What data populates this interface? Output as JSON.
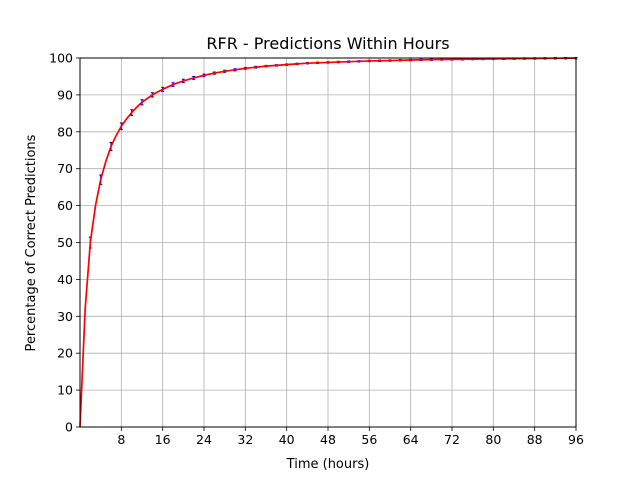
{
  "chart_data": {
    "type": "line",
    "title": "RFR - Predictions Within Hours",
    "xlabel": "Time (hours)",
    "ylabel": "Percentage of Correct Predictions",
    "xlim": [
      0,
      96
    ],
    "ylim": [
      0,
      100
    ],
    "xticks": [
      8,
      16,
      24,
      32,
      40,
      48,
      56,
      64,
      72,
      80,
      88,
      96
    ],
    "yticks": [
      0,
      10,
      20,
      30,
      40,
      50,
      60,
      70,
      80,
      90,
      100
    ],
    "grid": true,
    "series": [
      {
        "color": "#ff0000",
        "x": [
          0,
          0.5,
          1,
          1.5,
          2,
          3,
          4,
          5,
          6,
          7,
          8,
          9,
          10,
          11,
          12,
          13,
          14,
          15,
          16,
          18,
          20,
          22,
          24,
          26,
          28,
          30,
          32,
          34,
          36,
          38,
          40,
          42,
          44,
          46,
          48,
          52,
          56,
          60,
          64,
          68,
          72,
          76,
          80,
          84,
          88,
          92,
          96
        ],
        "y": [
          0,
          16,
          32,
          41,
          50,
          60,
          67,
          72,
          76,
          79,
          81.5,
          83.5,
          85.2,
          86.7,
          88,
          89,
          90,
          90.8,
          91.5,
          92.8,
          93.8,
          94.6,
          95.3,
          95.9,
          96.4,
          96.8,
          97.2,
          97.5,
          97.8,
          98.0,
          98.2,
          98.4,
          98.6,
          98.7,
          98.8,
          99.0,
          99.2,
          99.3,
          99.45,
          99.55,
          99.62,
          99.7,
          99.76,
          99.82,
          99.87,
          99.92,
          99.96
        ]
      },
      {
        "color": "#0000ff",
        "marker": "errorbar",
        "x": [
          2,
          4,
          6,
          8,
          10,
          12,
          14,
          16,
          18,
          20,
          22,
          24,
          26,
          28,
          30,
          32,
          34,
          36,
          38,
          40,
          42,
          44,
          46,
          48,
          50,
          52,
          54,
          56,
          58,
          60,
          62,
          64,
          66,
          68,
          70,
          72,
          74,
          76,
          78,
          80,
          82,
          84,
          86,
          88,
          90,
          92,
          94,
          96
        ],
        "y": [
          50,
          67,
          76,
          81.5,
          85.2,
          88,
          90,
          91.5,
          92.8,
          93.8,
          94.6,
          95.3,
          95.9,
          96.4,
          96.8,
          97.2,
          97.5,
          97.8,
          98.0,
          98.2,
          98.4,
          98.6,
          98.7,
          98.8,
          98.9,
          99.0,
          99.1,
          99.2,
          99.25,
          99.3,
          99.4,
          99.45,
          99.5,
          99.55,
          99.6,
          99.62,
          99.66,
          99.7,
          99.73,
          99.76,
          99.79,
          99.82,
          99.85,
          99.87,
          99.9,
          99.92,
          99.94,
          99.96
        ],
        "err": [
          1.5,
          1.3,
          1.1,
          0.9,
          0.8,
          0.7,
          0.6,
          0.55,
          0.5,
          0.45,
          0.4,
          0.35,
          0.3,
          0.3,
          0.3,
          0.25,
          0.25,
          0.2,
          0.2,
          0.2,
          0.2,
          0.2,
          0.2,
          0.2,
          0.2,
          0.2,
          0.2,
          0.2,
          0.2,
          0.2,
          0.2,
          0.2,
          0.2,
          0.2,
          0.2,
          0.2,
          0.2,
          0.2,
          0.2,
          0.2,
          0.2,
          0.2,
          0.2,
          0.2,
          0.2,
          0.2,
          0.2,
          0.2
        ]
      }
    ]
  }
}
